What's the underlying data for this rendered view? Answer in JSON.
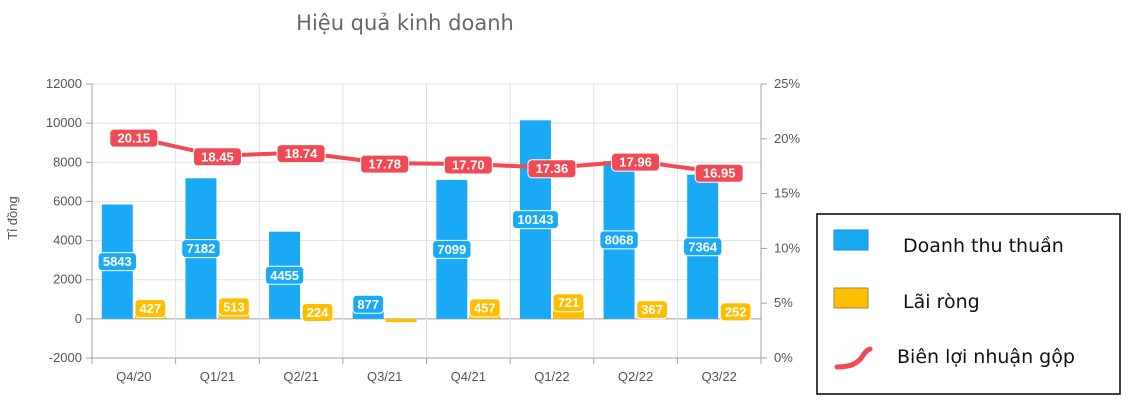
{
  "chart_data": {
    "type": "bar",
    "title": "Hiệu quả kinh doanh",
    "ylabel": "Tỉ đồng",
    "categories": [
      "Q4/20",
      "Q1/21",
      "Q2/21",
      "Q3/21",
      "Q4/21",
      "Q1/22",
      "Q2/22",
      "Q3/22"
    ],
    "ylim": [
      -2000,
      12000
    ],
    "yticks": [
      -2000,
      0,
      2000,
      4000,
      6000,
      8000,
      10000,
      12000
    ],
    "y2lim": [
      0,
      25
    ],
    "y2ticks": [
      "0%",
      "5%",
      "10%",
      "15%",
      "20%",
      "25%"
    ],
    "grid": true,
    "legend_position": "right",
    "series": [
      {
        "name": "Doanh thu thuần",
        "kind": "bar",
        "axis": "left",
        "color": "#1aa9f5",
        "values": [
          5843,
          7182,
          4455,
          877,
          7099,
          10143,
          8068,
          7364
        ]
      },
      {
        "name": "Lãi ròng",
        "kind": "bar",
        "axis": "left",
        "color": "#ffbf00",
        "values": [
          427,
          513,
          224,
          -170,
          457,
          721,
          367,
          252
        ],
        "labels": [
          "427",
          "513",
          "224",
          "",
          "457",
          "721",
          "367",
          "252"
        ]
      },
      {
        "name": "Biên lợi nhuận gộp",
        "kind": "line",
        "axis": "right",
        "color": "#f04a54",
        "values": [
          20.15,
          18.45,
          18.74,
          17.78,
          17.7,
          17.36,
          17.96,
          16.95
        ],
        "labels": [
          "20.15",
          "18.45",
          "18.74",
          "17.78",
          "17.70",
          "17.36",
          "17.96",
          "16.95"
        ]
      }
    ]
  }
}
